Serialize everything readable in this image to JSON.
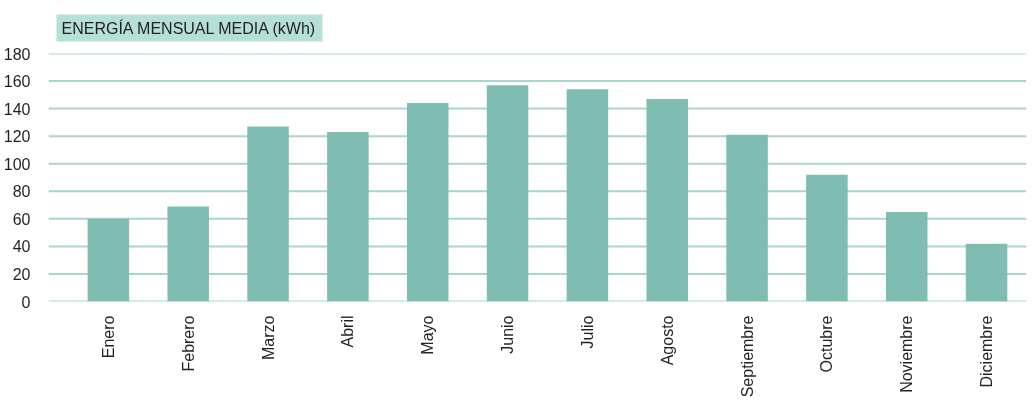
{
  "chart_data": {
    "type": "bar",
    "title": "ENERGÍA MENSUAL MEDIA (kWh)",
    "categories": [
      "Enero",
      "Febrero",
      "Marzo",
      "Abril",
      "Mayo",
      "Junio",
      "Julio",
      "Agosto",
      "Septiembre",
      "Octubre",
      "Noviembre",
      "Diciembre"
    ],
    "values": [
      60,
      69,
      127,
      123,
      144,
      157,
      154,
      147,
      121,
      92,
      65,
      42
    ],
    "color": "#7fbdb3",
    "ylim": [
      0,
      180
    ],
    "yticks": [
      0,
      20,
      40,
      60,
      80,
      100,
      120,
      140,
      160,
      180
    ],
    "grid": "y"
  }
}
